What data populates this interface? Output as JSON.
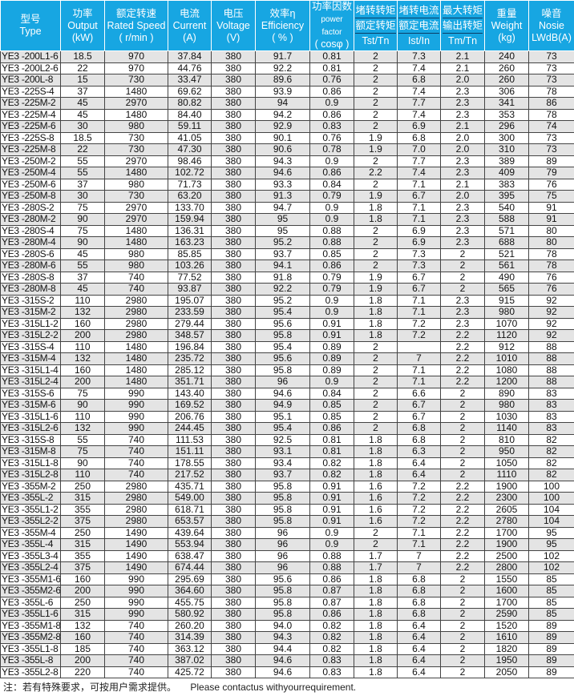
{
  "header": [
    {
      "zh": "型号",
      "en": "Type"
    },
    {
      "zh": "功率",
      "en": "Output",
      "unit": "(kW)"
    },
    {
      "zh": "额定转速",
      "en": "Rated Speed",
      "unit": "( r/min )"
    },
    {
      "zh": "电流",
      "en": "Current",
      "unit": "(A)"
    },
    {
      "zh": "电压",
      "en": "Voltage",
      "unit": "(V)"
    },
    {
      "zh": "效率η",
      "en": "Efficiency",
      "unit": "( % )"
    },
    {
      "zh": "功率因数",
      "en": "power factor",
      "unit": "( cosφ )"
    },
    {
      "zh": "堵转转矩",
      "zh2": "额定转矩",
      "en": "Tst/Tn"
    },
    {
      "zh": "堵转电流",
      "zh2": "额定电流",
      "en": "Ist/In"
    },
    {
      "zh": "最大转矩",
      "zh2": "输出转矩",
      "en": "Tm/Tn"
    },
    {
      "zh": "重量",
      "en": "Weight",
      "unit": "(kg)"
    },
    {
      "zh": "噪音",
      "en": "Nosie",
      "unit": "LWdB(A)"
    }
  ],
  "rows": [
    [
      "YE3 -200L1-6",
      "18.5",
      "970",
      "37.84",
      "380",
      "91.7",
      "0.81",
      "2",
      "7.3",
      "2.1",
      "240",
      "73"
    ],
    [
      "YE3 -200L2-6",
      "22",
      "970",
      "44.76",
      "380",
      "92.2",
      "0.81",
      "2",
      "7.4",
      "2.1",
      "260",
      "73"
    ],
    [
      "YE3 -200L-8",
      "15",
      "730",
      "33.47",
      "380",
      "89.6",
      "0.76",
      "2",
      "6.8",
      "2.0",
      "260",
      "73"
    ],
    [
      "YE3 -225S-4",
      "37",
      "1480",
      "69.62",
      "380",
      "93.9",
      "0.86",
      "2",
      "7.4",
      "2.3",
      "306",
      "78"
    ],
    [
      "YE3 -225M-2",
      "45",
      "2970",
      "80.82",
      "380",
      "94",
      "0.9",
      "2",
      "7.7",
      "2.3",
      "341",
      "86"
    ],
    [
      "YE3 -225M-4",
      "45",
      "1480",
      "84.40",
      "380",
      "94.2",
      "0.86",
      "2",
      "7.4",
      "2.3",
      "353",
      "78"
    ],
    [
      "YE3 -225M-6",
      "30",
      "980",
      "59.11",
      "380",
      "92.9",
      "0.83",
      "2",
      "6.9",
      "2.1",
      "296",
      "74"
    ],
    [
      "YE3 -225S-8",
      "18.5",
      "730",
      "41.05",
      "380",
      "90.1",
      "0.76",
      "1.9",
      "6.8",
      "2.0",
      "300",
      "73"
    ],
    [
      "YE3 -225M-8",
      "22",
      "730",
      "47.30",
      "380",
      "90.6",
      "0.78",
      "1.9",
      "7.0",
      "2.0",
      "310",
      "73"
    ],
    [
      "YE3 -250M-2",
      "55",
      "2970",
      "98.46",
      "380",
      "94.3",
      "0.9",
      "2",
      "7.7",
      "2.3",
      "389",
      "89"
    ],
    [
      "YE3 -250M-4",
      "55",
      "1480",
      "102.72",
      "380",
      "94.6",
      "0.86",
      "2.2",
      "7.4",
      "2.3",
      "409",
      "79"
    ],
    [
      "YE3 -250M-6",
      "37",
      "980",
      "71.73",
      "380",
      "93.3",
      "0.84",
      "2",
      "7.1",
      "2.1",
      "383",
      "76"
    ],
    [
      "YE3 -250M-8",
      "30",
      "730",
      "63.20",
      "380",
      "91.3",
      "0.79",
      "1.9",
      "6.7",
      "2.0",
      "395",
      "75"
    ],
    [
      "YE3 -280S-2",
      "75",
      "2970",
      "133.70",
      "380",
      "94.7",
      "0.9",
      "1.8",
      "7.1",
      "2.3",
      "540",
      "91"
    ],
    [
      "YE3 -280M-2",
      "90",
      "2970",
      "159.94",
      "380",
      "95",
      "0.9",
      "1.8",
      "7.1",
      "2.3",
      "588",
      "91"
    ],
    [
      "YE3 -280S-4",
      "75",
      "1480",
      "136.31",
      "380",
      "95",
      "0.88",
      "2",
      "6.9",
      "2.3",
      "571",
      "80"
    ],
    [
      "YE3 -280M-4",
      "90",
      "1480",
      "163.23",
      "380",
      "95.2",
      "0.88",
      "2",
      "6.9",
      "2.3",
      "688",
      "80"
    ],
    [
      "YE3 -280S-6",
      "45",
      "980",
      "85.85",
      "380",
      "93.7",
      "0.85",
      "2",
      "7.3",
      "2",
      "521",
      "78"
    ],
    [
      "YE3 -280M-6",
      "55",
      "980",
      "103.26",
      "380",
      "94.1",
      "0.86",
      "2",
      "7.3",
      "2",
      "561",
      "78"
    ],
    [
      "YE3 -280S-8",
      "37",
      "740",
      "77.52",
      "380",
      "91.8",
      "0.79",
      "1.9",
      "6.7",
      "2",
      "490",
      "76"
    ],
    [
      "YE3 -280M-8",
      "45",
      "740",
      "93.87",
      "380",
      "92.2",
      "0.79",
      "1.9",
      "6.7",
      "2",
      "565",
      "76"
    ],
    [
      "YE3 -315S-2",
      "110",
      "2980",
      "195.07",
      "380",
      "95.2",
      "0.9",
      "1.8",
      "7.1",
      "2.3",
      "915",
      "92"
    ],
    [
      "YE3 -315M-2",
      "132",
      "2980",
      "233.59",
      "380",
      "95.4",
      "0.9",
      "1.8",
      "7.1",
      "2.3",
      "980",
      "92"
    ],
    [
      "YE3 -315L1-2",
      "160",
      "2980",
      "279.44",
      "380",
      "95.6",
      "0.91",
      "1.8",
      "7.2",
      "2.3",
      "1070",
      "92"
    ],
    [
      "YE3 -315L2-2",
      "200",
      "2980",
      "348.57",
      "380",
      "95.8",
      "0.91",
      "1.8",
      "7.2",
      "2.2",
      "1120",
      "92"
    ],
    [
      "YE3 -315S-4",
      "110",
      "1480",
      "196.84",
      "380",
      "95.4",
      "0.89",
      "2",
      "",
      "2.2",
      "912",
      "88"
    ],
    [
      "YE3 -315M-4",
      "132",
      "1480",
      "235.72",
      "380",
      "95.6",
      "0.89",
      "2",
      "7",
      "2.2",
      "1010",
      "88"
    ],
    [
      "YE3 -315L1-4",
      "160",
      "1480",
      "285.12",
      "380",
      "95.8",
      "0.89",
      "2",
      "7.1",
      "2.2",
      "1080",
      "88"
    ],
    [
      "YE3 -315L2-4",
      "200",
      "1480",
      "351.71",
      "380",
      "96",
      "0.9",
      "2",
      "7.1",
      "2.2",
      "1200",
      "88"
    ],
    [
      "YE3 -315S-6",
      "75",
      "990",
      "143.40",
      "380",
      "94.6",
      "0.84",
      "2",
      "6.6",
      "2",
      "890",
      "83"
    ],
    [
      "YE3 -315M-6",
      "90",
      "990",
      "169.52",
      "380",
      "94.9",
      "0.85",
      "2",
      "6.7",
      "2",
      "980",
      "83"
    ],
    [
      "YE3 -315L1-6",
      "110",
      "990",
      "206.76",
      "380",
      "95.1",
      "0.85",
      "2",
      "6.7",
      "2",
      "1030",
      "83"
    ],
    [
      "YE3 -315L2-6",
      "132",
      "990",
      "244.45",
      "380",
      "95.4",
      "0.86",
      "2",
      "6.8",
      "2",
      "1140",
      "83"
    ],
    [
      "YE3 -315S-8",
      "55",
      "740",
      "111.53",
      "380",
      "92.5",
      "0.81",
      "1.8",
      "6.8",
      "2",
      "810",
      "82"
    ],
    [
      "YE3 -315M-8",
      "75",
      "740",
      "151.11",
      "380",
      "93.1",
      "0.81",
      "1.8",
      "6.3",
      "2",
      "950",
      "82"
    ],
    [
      "YE3 -315L1-8",
      "90",
      "740",
      "178.55",
      "380",
      "93.4",
      "0.82",
      "1.8",
      "6.4",
      "2",
      "1050",
      "82"
    ],
    [
      "YE3 -315L2-8",
      "110",
      "740",
      "217.52",
      "380",
      "93.7",
      "0.82",
      "1.8",
      "6.4",
      "2",
      "1110",
      "82"
    ],
    [
      "YE3 -355M-2",
      "250",
      "2980",
      "435.71",
      "380",
      "95.8",
      "0.91",
      "1.6",
      "7.2",
      "2.2",
      "1900",
      "100"
    ],
    [
      "YE3 -355L-2",
      "315",
      "2980",
      "549.00",
      "380",
      "95.8",
      "0.91",
      "1.6",
      "7.2",
      "2.2",
      "2300",
      "100"
    ],
    [
      "YE3 -355L1-2",
      "355",
      "2980",
      "618.71",
      "380",
      "95.8",
      "0.91",
      "1.6",
      "7.2",
      "2.2",
      "2605",
      "104"
    ],
    [
      "YE3 -355L2-2",
      "375",
      "2980",
      "653.57",
      "380",
      "95.8",
      "0.91",
      "1.6",
      "7.2",
      "2.2",
      "2780",
      "104"
    ],
    [
      "YE3 -355M-4",
      "250",
      "1490",
      "439.64",
      "380",
      "96",
      "0.9",
      "2",
      "7.1",
      "2.2",
      "1700",
      "95"
    ],
    [
      "YE3 -355L-4",
      "315",
      "1490",
      "553.94",
      "380",
      "96",
      "0.9",
      "2",
      "7.1",
      "2.2",
      "1900",
      "95"
    ],
    [
      "YE3 -355L3-4",
      "355",
      "1490",
      "638.47",
      "380",
      "96",
      "0.88",
      "1.7",
      "7",
      "2.2",
      "2500",
      "102"
    ],
    [
      "YE3 -355L2-4",
      "375",
      "1490",
      "674.44",
      "380",
      "96",
      "0.88",
      "1.7",
      "7",
      "2.2",
      "2800",
      "102"
    ],
    [
      "YE3 -355M1-6",
      "160",
      "990",
      "295.69",
      "380",
      "95.6",
      "0.86",
      "1.8",
      "6.8",
      "2",
      "1550",
      "85"
    ],
    [
      "YE3 -355M2-6",
      "200",
      "990",
      "364.60",
      "380",
      "95.8",
      "0.87",
      "1.8",
      "6.8",
      "2",
      "1600",
      "85"
    ],
    [
      "YE3 -355L-6",
      "250",
      "990",
      "455.75",
      "380",
      "95.8",
      "0.87",
      "1.8",
      "6.8",
      "2",
      "1700",
      "85"
    ],
    [
      "YE3 -355L1-6",
      "315",
      "990",
      "580.92",
      "380",
      "95.8",
      "0.86",
      "1.8",
      "6.8",
      "2",
      "2590",
      "85"
    ],
    [
      "YE3 -355M1-8",
      "132",
      "740",
      "260.20",
      "380",
      "94.0",
      "0.82",
      "1.8",
      "6.4",
      "2",
      "1520",
      "89"
    ],
    [
      "YE3 -355M2-8",
      "160",
      "740",
      "314.39",
      "380",
      "94.3",
      "0.82",
      "1.8",
      "6.4",
      "2",
      "1610",
      "89"
    ],
    [
      "YE3 -355L1-8",
      "185",
      "740",
      "363.12",
      "380",
      "94.4",
      "0.82",
      "1.8",
      "6.4",
      "2",
      "1820",
      "89"
    ],
    [
      "YE3 -355L-8",
      "200",
      "740",
      "387.02",
      "380",
      "94.6",
      "0.83",
      "1.8",
      "6.4",
      "2",
      "1950",
      "89"
    ],
    [
      "YE3 -355L2-8",
      "220",
      "740",
      "425.72",
      "380",
      "94.6",
      "0.83",
      "1.8",
      "6.4",
      "2",
      "2050",
      "89"
    ]
  ],
  "note": {
    "zh": "注：若有特殊要求，可按用户需求提供。",
    "en": "Please contactus withyourrequirement."
  },
  "colors": {
    "header_bg": "#17a6e2",
    "row_alt": "#e4e4e4"
  }
}
